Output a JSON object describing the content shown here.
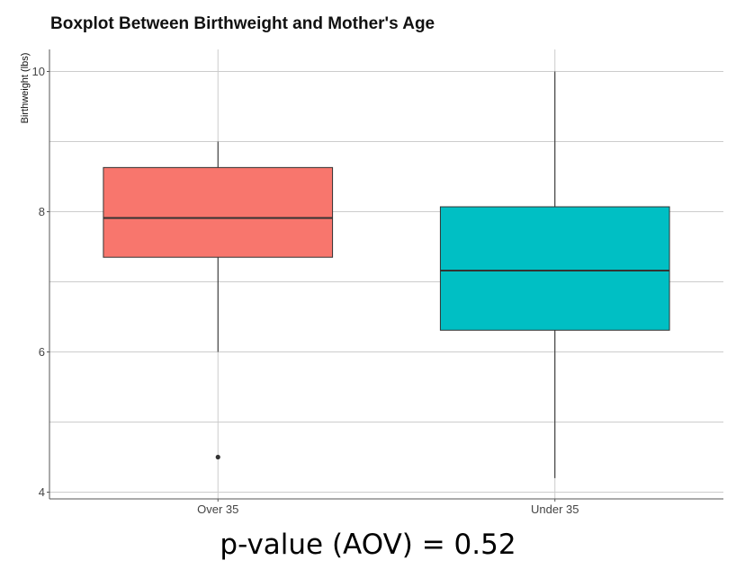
{
  "chart_data": {
    "type": "box",
    "title": "Boxplot Between Birthweight and Mother's Age",
    "xlabel": "",
    "ylabel": "Birthweight (lbs)",
    "categories": [
      "Over 35",
      "Under 35"
    ],
    "ylim": [
      3.9,
      10.3
    ],
    "yticks": [
      4,
      6,
      8,
      10
    ],
    "grid": true,
    "colors": [
      "#F8766D",
      "#00BFC4"
    ],
    "boxes": [
      {
        "category": "Over 35",
        "whisker_low": 6.0,
        "q1": 7.35,
        "median": 7.91,
        "q3": 8.63,
        "whisker_high": 9.0,
        "outliers": [
          4.5
        ]
      },
      {
        "category": "Under 35",
        "whisker_low": 4.2,
        "q1": 6.31,
        "median": 7.16,
        "q3": 8.07,
        "whisker_high": 10.0,
        "outliers": []
      }
    ]
  },
  "caption": "p-value (AOV) = 0.52"
}
